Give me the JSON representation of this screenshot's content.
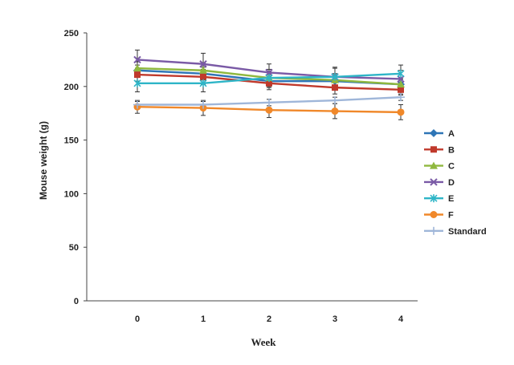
{
  "chart_data": {
    "type": "line",
    "title": "",
    "xlabel": "Week",
    "ylabel": "Mouse weight (g)",
    "categories": [
      "0",
      "1",
      "2",
      "3",
      "4"
    ],
    "ylim": [
      0,
      250
    ],
    "yticks": [
      0,
      50,
      100,
      150,
      200,
      250
    ],
    "grid": false,
    "legend_position": "right",
    "series": [
      {
        "name": "A",
        "color": "#2e75b6",
        "marker": "diamond",
        "values": [
          215,
          212,
          205,
          205,
          202
        ],
        "errors": [
          5,
          6,
          6,
          6,
          5
        ]
      },
      {
        "name": "B",
        "color": "#c0392b",
        "marker": "square",
        "values": [
          211,
          209,
          203,
          199,
          197
        ],
        "errors": [
          6,
          7,
          6,
          6,
          5
        ]
      },
      {
        "name": "C",
        "color": "#8fb83e",
        "marker": "triangle",
        "values": [
          217,
          215,
          208,
          206,
          202
        ],
        "errors": [
          6,
          7,
          6,
          6,
          5
        ]
      },
      {
        "name": "D",
        "color": "#7a5aa6",
        "marker": "x",
        "values": [
          225,
          221,
          213,
          209,
          207
        ],
        "errors": [
          9,
          10,
          8,
          9,
          8
        ]
      },
      {
        "name": "E",
        "color": "#2eb5c7",
        "marker": "star",
        "values": [
          203,
          203,
          208,
          209,
          212
        ],
        "errors": [
          8,
          8,
          8,
          8,
          8
        ]
      },
      {
        "name": "F",
        "color": "#f0882a",
        "marker": "circle",
        "values": [
          181,
          180,
          178,
          177,
          176
        ],
        "errors": [
          6,
          7,
          7,
          7,
          7
        ]
      },
      {
        "name": "Standard",
        "color": "#9fb6d9",
        "marker": "plus",
        "values": [
          183,
          183,
          185,
          187,
          190
        ],
        "errors": [
          3,
          3,
          3,
          3,
          3
        ]
      }
    ]
  }
}
